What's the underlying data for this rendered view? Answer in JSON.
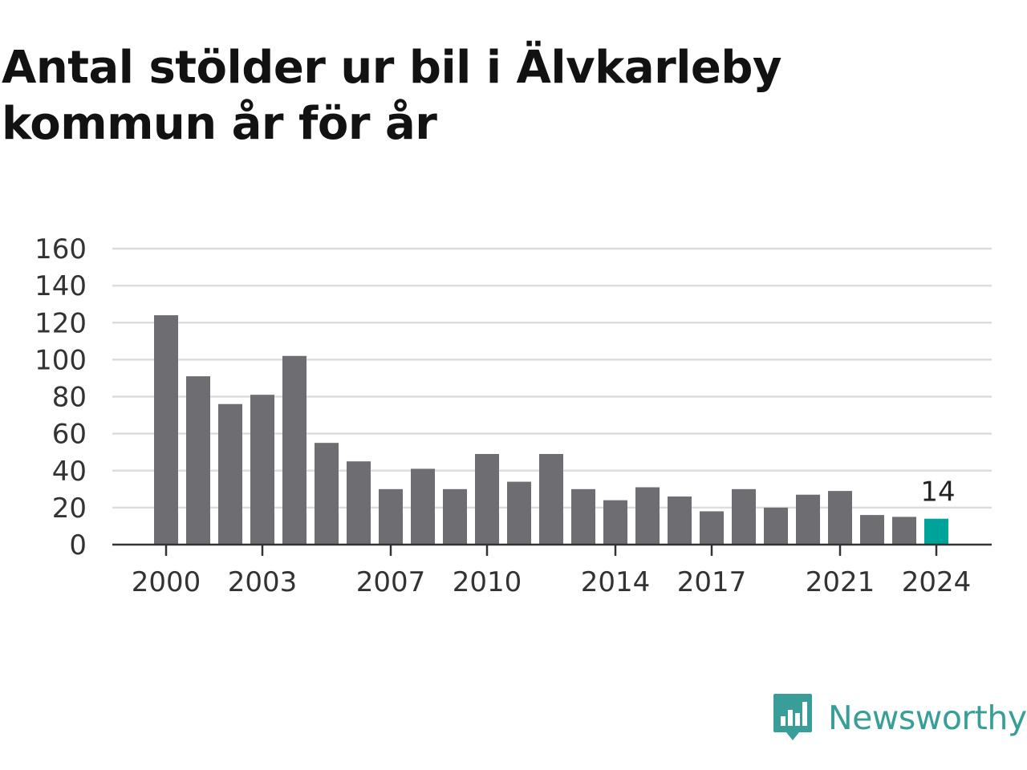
{
  "title": "Antal stölder ur bil i Älvkarleby kommun år för år",
  "brand": {
    "name": "Newsworthy",
    "logo_icon": "newsworthy-chart-bubble-icon",
    "color": "#3a9e98"
  },
  "chart_data": {
    "type": "bar",
    "title": "Antal stölder ur bil i Älvkarleby kommun år för år",
    "xlabel": "",
    "ylabel": "",
    "categories": [
      "2000",
      "2001",
      "2002",
      "2003",
      "2004",
      "2005",
      "2006",
      "2007",
      "2008",
      "2009",
      "2010",
      "2011",
      "2012",
      "2013",
      "2014",
      "2015",
      "2016",
      "2017",
      "2018",
      "2019",
      "2020",
      "2021",
      "2022",
      "2023",
      "2024"
    ],
    "values": [
      124,
      91,
      76,
      81,
      102,
      55,
      45,
      30,
      41,
      30,
      49,
      34,
      49,
      30,
      24,
      31,
      26,
      18,
      30,
      20,
      27,
      29,
      16,
      15,
      14
    ],
    "x_tick_labels": [
      "2000",
      "2003",
      "2007",
      "2010",
      "2014",
      "2017",
      "2021",
      "2024"
    ],
    "y_ticks": [
      0,
      20,
      40,
      60,
      80,
      100,
      120,
      140,
      160
    ],
    "ylim": [
      0,
      160
    ],
    "grid": true,
    "legend": "none",
    "highlight": {
      "category": "2024",
      "label": "14"
    },
    "colors": {
      "bar": "#6e6d72",
      "highlight": "#00a39a",
      "grid": "#dddddd",
      "axis": "#333333"
    }
  }
}
